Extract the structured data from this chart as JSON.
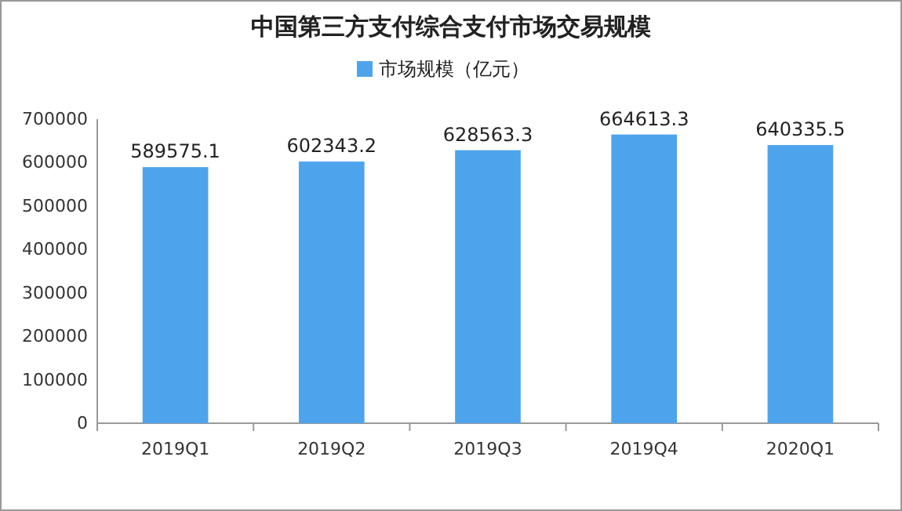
{
  "chart_data": {
    "type": "bar",
    "title": "中国第三方支付综合支付市场交易规模",
    "categories": [
      "2019Q1",
      "2019Q2",
      "2019Q3",
      "2019Q4",
      "2020Q1"
    ],
    "series": [
      {
        "name": "市场规模（亿元）",
        "color": "#4ea4ec",
        "values": [
          589575.1,
          602343.2,
          628563.3,
          664613.3,
          640335.5
        ]
      }
    ],
    "ylim": [
      0,
      700000
    ],
    "yticks": [
      0,
      100000,
      200000,
      300000,
      400000,
      500000,
      600000,
      700000
    ],
    "data_labels": true,
    "legend": "top",
    "grid": false
  }
}
